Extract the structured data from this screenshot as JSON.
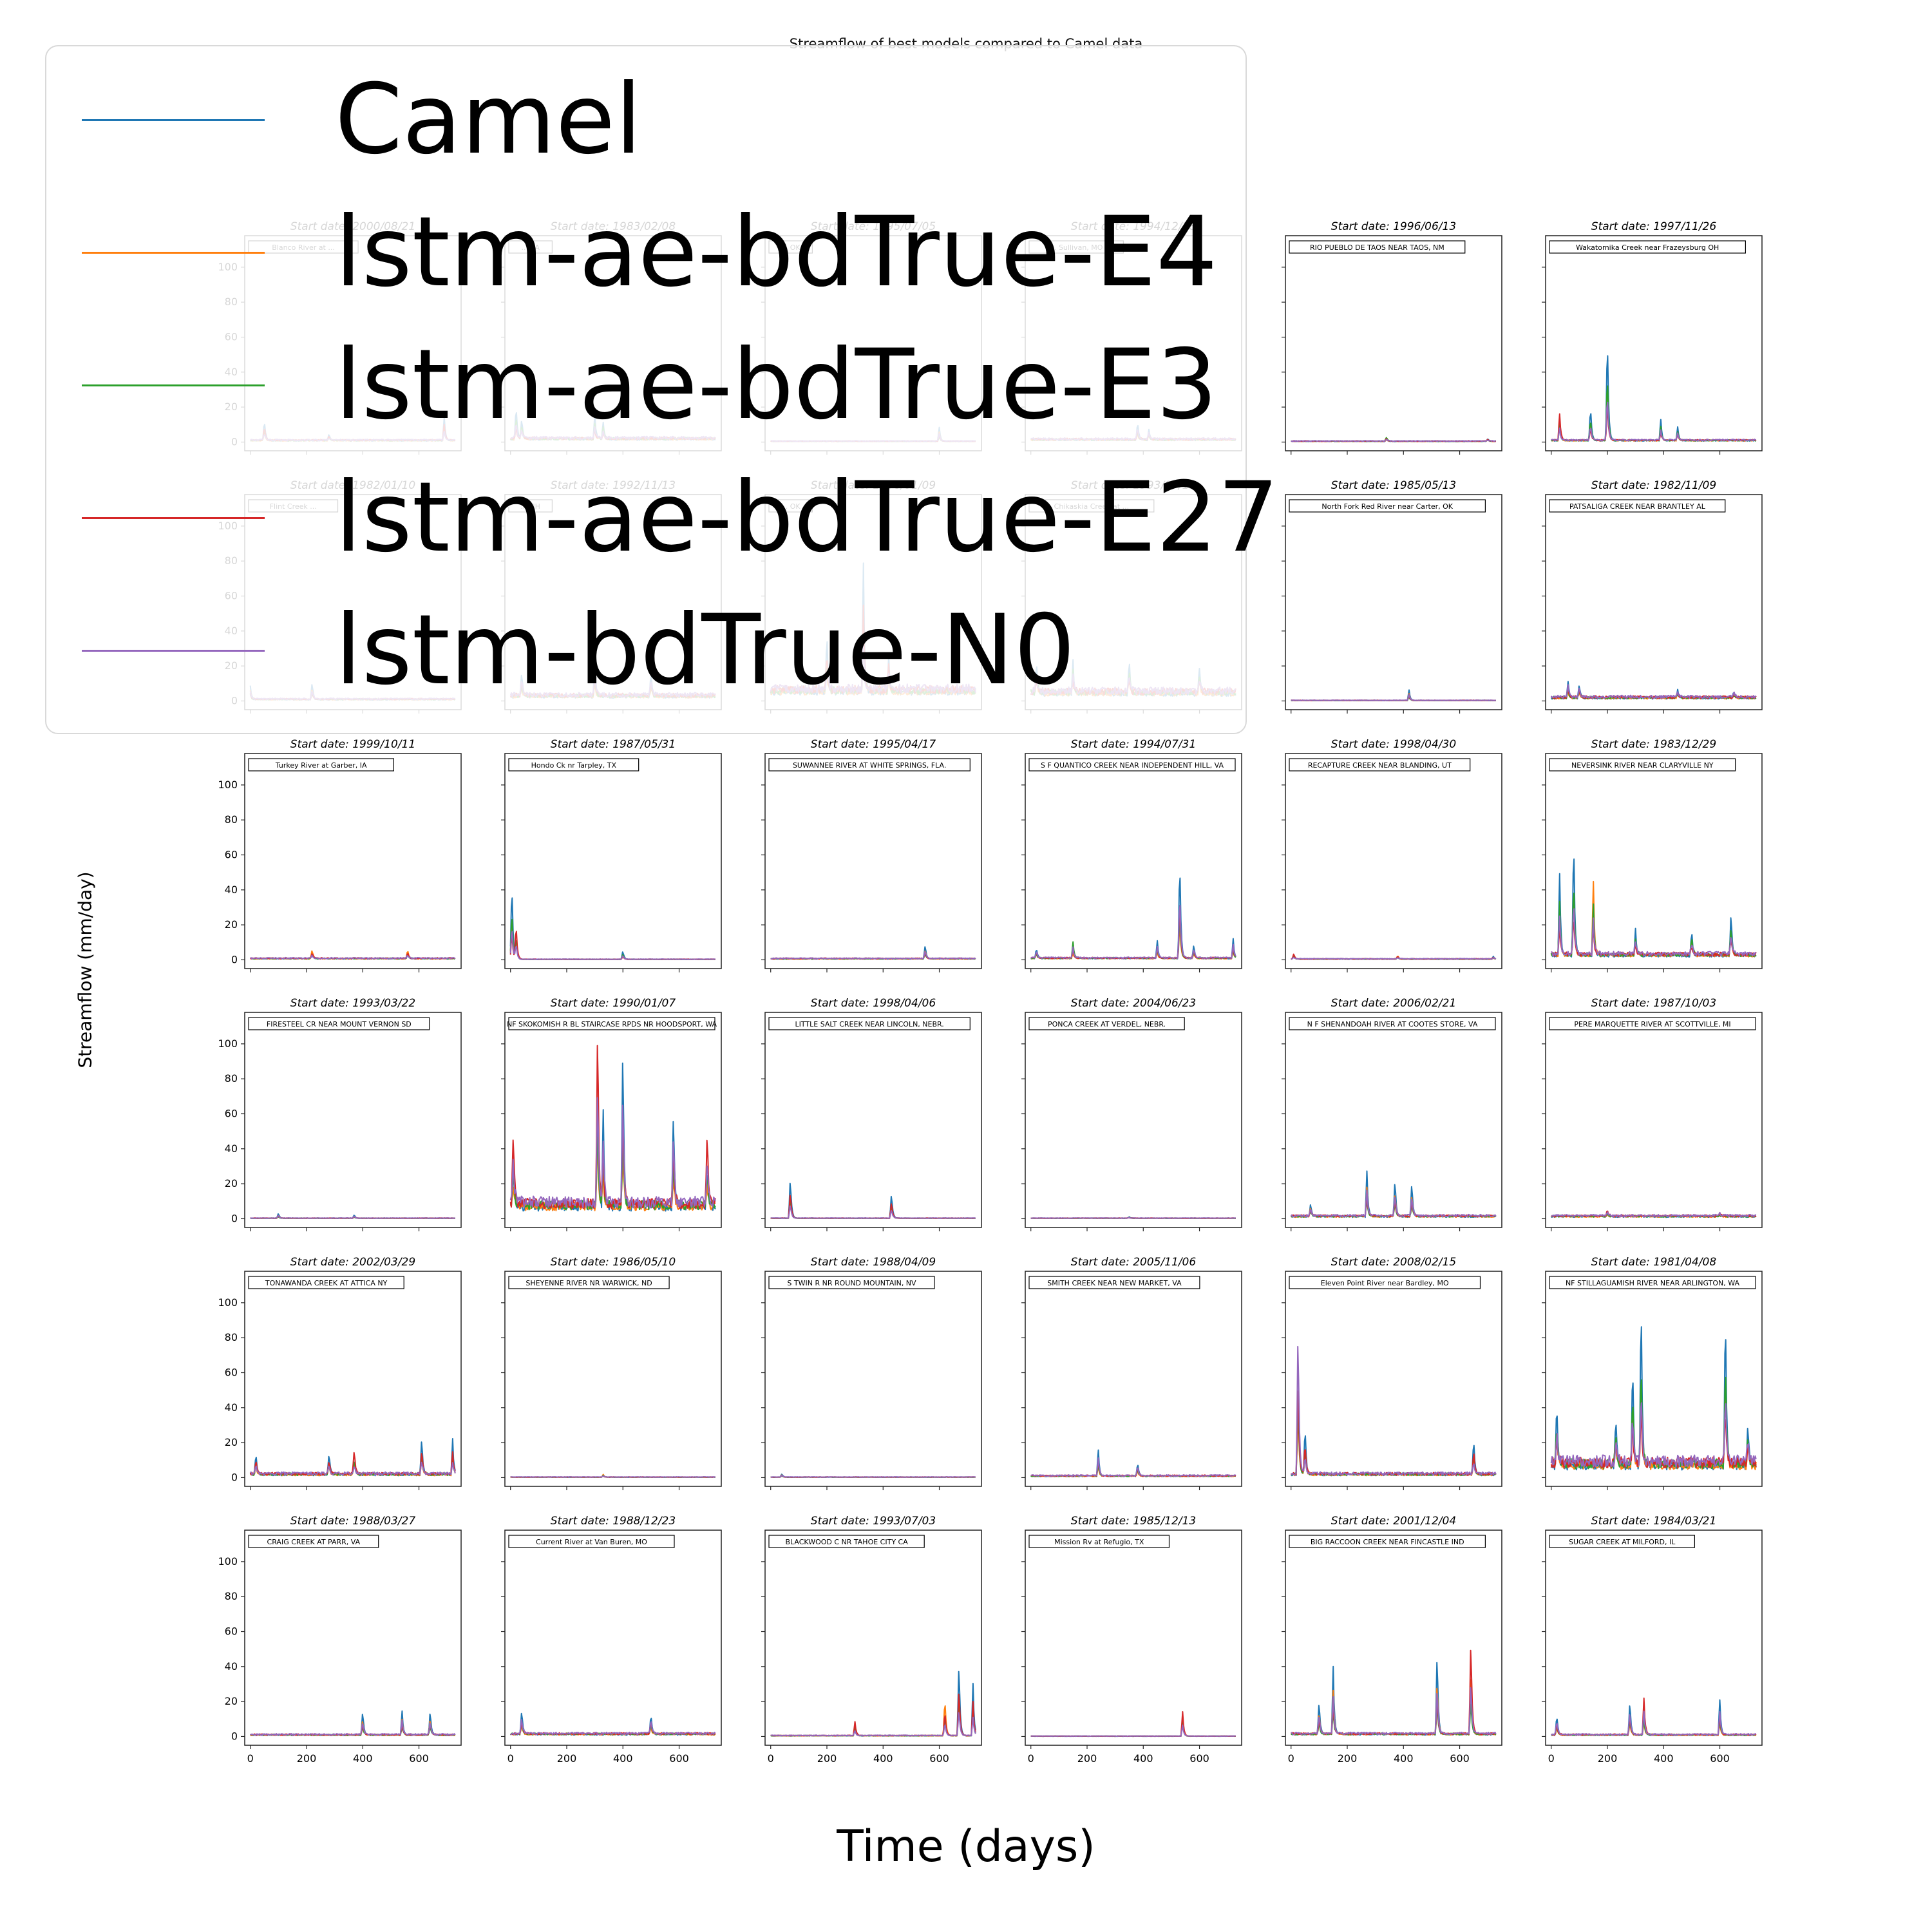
{
  "figure": {
    "title": "Streamflow of best models compared to Camel data",
    "xlabel": "Time (days)",
    "ylabel": "Streamflow (mm/day)",
    "subplot_title_prefix": "Start date: "
  },
  "legend": {
    "entries": [
      {
        "label": "Camel",
        "color": "#1f77b4"
      },
      {
        "label": "lstm-ae-bdTrue-E4",
        "color": "#ff7f0e"
      },
      {
        "label": "lstm-ae-bdTrue-E3",
        "color": "#2ca02c"
      },
      {
        "label": "lstm-ae-bdTrue-E27",
        "color": "#d62728"
      },
      {
        "label": "lstm-bdTrue-N0",
        "color": "#9467bd"
      }
    ]
  },
  "chart_data": {
    "type": "line",
    "layout": "grid of small multiples, 6 rows x 6 columns, shared axes",
    "xlim": [
      -20,
      750
    ],
    "ylim": [
      -5,
      118
    ],
    "xticks": [
      0,
      200,
      400,
      600
    ],
    "yticks": [
      0,
      20,
      40,
      60,
      80,
      100
    ],
    "grid": false,
    "legend_position": "upper-left",
    "series_names": [
      "Camel",
      "lstm-ae-bdTrue-E4",
      "lstm-ae-bdTrue-E3",
      "lstm-ae-bdTrue-E27",
      "lstm-bdTrue-N0"
    ],
    "panels": [
      {
        "start_date": "2000/08/21",
        "station": "Blanco River at ...",
        "base": 1.0,
        "peaks": [
          [
            50,
            12,
            "c"
          ],
          [
            280,
            4,
            "c"
          ],
          [
            690,
            14,
            "c"
          ]
        ]
      },
      {
        "start_date": "1983/02/08",
        "station": "... VA",
        "base": 2.0,
        "peaks": [
          [
            20,
            20,
            "c"
          ],
          [
            40,
            12,
            "c"
          ],
          [
            300,
            14,
            "c"
          ],
          [
            330,
            10,
            "c"
          ]
        ]
      },
      {
        "start_date": "1995/07/05",
        "station": "... OK",
        "base": 0.5,
        "peaks": [
          [
            600,
            8,
            "c"
          ]
        ]
      },
      {
        "start_date": "1994/12/18",
        "station": "... Sullivan, MO",
        "base": 1.5,
        "peaks": [
          [
            380,
            10,
            "c"
          ],
          [
            420,
            6,
            "c"
          ]
        ]
      },
      {
        "start_date": "1996/06/13",
        "station": "RIO PUEBLO DE TAOS NEAR TAOS, NM",
        "base": 0.5,
        "peaks": [
          [
            340,
            2.5,
            "g"
          ],
          [
            700,
            1.5,
            "c"
          ]
        ]
      },
      {
        "start_date": "1997/11/26",
        "station": "Wakatomika Creek near Frazeysburg OH",
        "base": 1.0,
        "peaks": [
          [
            30,
            15,
            "r"
          ],
          [
            140,
            20,
            "c"
          ],
          [
            200,
            62,
            "c"
          ],
          [
            390,
            12,
            "c"
          ],
          [
            450,
            8,
            "c"
          ]
        ]
      },
      {
        "start_date": "1982/01/10",
        "station": "Flint Creek ...",
        "base": 1.0,
        "peaks": [
          [
            0,
            8,
            "c"
          ],
          [
            220,
            10,
            "c"
          ]
        ]
      },
      {
        "start_date": "1992/11/13",
        "station": "... NH",
        "base": 3.0,
        "peaks": [
          [
            40,
            15,
            "c"
          ],
          [
            300,
            20,
            "c"
          ],
          [
            500,
            15,
            "c"
          ]
        ]
      },
      {
        "start_date": "1996/01/09",
        "station": "... OK",
        "base": 6.0,
        "peaks": [
          [
            200,
            35,
            "c"
          ],
          [
            330,
            75,
            "c"
          ],
          [
            420,
            20,
            "c"
          ]
        ]
      },
      {
        "start_date": "1993/07/15",
        "station": "Chikaskia Creek at ...",
        "base": 5.0,
        "peaks": [
          [
            20,
            20,
            "c"
          ],
          [
            150,
            18,
            "c"
          ],
          [
            350,
            20,
            "c"
          ],
          [
            600,
            15,
            "c"
          ]
        ]
      },
      {
        "start_date": "1985/05/13",
        "station": "North Fork Red River near Carter, OK",
        "base": 0.3,
        "peaks": [
          [
            420,
            6,
            "c"
          ]
        ]
      },
      {
        "start_date": "1982/11/09",
        "station": "PATSALIGA CREEK NEAR BRANTLEY AL",
        "base": 2.0,
        "peaks": [
          [
            60,
            10,
            "c"
          ],
          [
            100,
            8,
            "c"
          ],
          [
            450,
            5,
            "c"
          ],
          [
            650,
            4,
            "c"
          ]
        ]
      },
      {
        "start_date": "1999/10/11",
        "station": "Turkey River at Garber, IA",
        "base": 0.8,
        "peaks": [
          [
            220,
            5,
            "o"
          ],
          [
            560,
            5,
            "o"
          ]
        ]
      },
      {
        "start_date": "1987/05/31",
        "station": "Hondo Ck nr Tarpley, TX",
        "base": 0.3,
        "peaks": [
          [
            5,
            45,
            "c"
          ],
          [
            20,
            20,
            "r"
          ],
          [
            400,
            5,
            "c"
          ]
        ]
      },
      {
        "start_date": "1995/04/17",
        "station": "SUWANNEE RIVER AT WHITE SPRINGS, FLA.",
        "base": 0.7,
        "peaks": [
          [
            550,
            8,
            "c"
          ]
        ]
      },
      {
        "start_date": "1994/07/31",
        "station": "S F QUANTICO CREEK NEAR INDEPENDENT HILL, VA",
        "base": 1.0,
        "peaks": [
          [
            20,
            6,
            "c"
          ],
          [
            150,
            9,
            "g"
          ],
          [
            450,
            10,
            "c"
          ],
          [
            530,
            59,
            "c"
          ],
          [
            580,
            8,
            "c"
          ],
          [
            720,
            11,
            "c"
          ]
        ]
      },
      {
        "start_date": "1998/04/30",
        "station": "RECAPTURE CREEK NEAR BLANDING, UT",
        "base": 0.5,
        "peaks": [
          [
            10,
            3,
            "r"
          ],
          [
            380,
            2,
            "o"
          ],
          [
            720,
            1.5,
            "c"
          ]
        ]
      },
      {
        "start_date": "1983/12/29",
        "station": "NEVERSINK RIVER NEAR CLARYVILLE NY",
        "base": 3.0,
        "peaks": [
          [
            30,
            47,
            "c"
          ],
          [
            80,
            70,
            "c"
          ],
          [
            150,
            43,
            "o"
          ],
          [
            300,
            15,
            "c"
          ],
          [
            500,
            15,
            "c"
          ],
          [
            640,
            25,
            "c"
          ]
        ]
      },
      {
        "start_date": "1993/03/22",
        "station": "FIRESTEEL CR NEAR MOUNT VERNON SD",
        "base": 0.3,
        "peaks": [
          [
            100,
            3,
            "c"
          ],
          [
            370,
            2,
            "c"
          ]
        ]
      },
      {
        "start_date": "1990/01/07",
        "station": "NF SKOKOMISH R BL STAIRCASE RPDS NR HOODSPORT, WA",
        "base": 8.0,
        "peaks": [
          [
            10,
            44,
            "r"
          ],
          [
            310,
            110,
            "r"
          ],
          [
            330,
            57,
            "c"
          ],
          [
            400,
            98,
            "c"
          ],
          [
            580,
            59,
            "c"
          ],
          [
            700,
            42,
            "r"
          ]
        ]
      },
      {
        "start_date": "1998/04/06",
        "station": "LITTLE SALT CREEK NEAR LINCOLN, NEBR.",
        "base": 0.3,
        "peaks": [
          [
            70,
            24,
            "c"
          ],
          [
            430,
            15,
            "c"
          ]
        ]
      },
      {
        "start_date": "2004/06/23",
        "station": "PONCA CREEK AT VERDEL, NEBR.",
        "base": 0.3,
        "peaks": [
          [
            350,
            1,
            "c"
          ]
        ]
      },
      {
        "start_date": "2006/02/21",
        "station": "N F SHENANDOAH RIVER AT COOTES STORE, VA",
        "base": 1.5,
        "peaks": [
          [
            70,
            8,
            "c"
          ],
          [
            270,
            26,
            "c"
          ],
          [
            370,
            22,
            "c"
          ],
          [
            430,
            20,
            "c"
          ]
        ]
      },
      {
        "start_date": "1987/10/03",
        "station": "PERE MARQUETTE RIVER AT SCOTTVILLE, MI",
        "base": 1.5,
        "peaks": [
          [
            200,
            3,
            "r"
          ],
          [
            600,
            2,
            "r"
          ]
        ]
      },
      {
        "start_date": "2002/03/29",
        "station": "TONAWANDA CREEK AT ATTICA NY",
        "base": 2.0,
        "peaks": [
          [
            20,
            13,
            "c"
          ],
          [
            280,
            13,
            "c"
          ],
          [
            370,
            15,
            "r"
          ],
          [
            610,
            22,
            "c"
          ],
          [
            720,
            20,
            "c"
          ]
        ]
      },
      {
        "start_date": "1986/05/10",
        "station": "SHEYENNE RIVER NR WARWICK, ND",
        "base": 0.3,
        "peaks": [
          [
            330,
            1.5,
            "o"
          ]
        ]
      },
      {
        "start_date": "1988/04/09",
        "station": "S TWIN R NR ROUND MOUNTAIN, NV",
        "base": 0.3,
        "peaks": [
          [
            40,
            2,
            "c"
          ]
        ]
      },
      {
        "start_date": "2005/11/06",
        "station": "SMITH CREEK NEAR NEW MARKET, VA",
        "base": 1.0,
        "peaks": [
          [
            240,
            15,
            "c"
          ],
          [
            380,
            8,
            "c"
          ]
        ]
      },
      {
        "start_date": "2008/02/15",
        "station": "Eleven Point River near Bardley, MO",
        "base": 2.0,
        "peaks": [
          [
            25,
            88,
            "p"
          ],
          [
            50,
            28,
            "c"
          ],
          [
            650,
            21,
            "c"
          ]
        ]
      },
      {
        "start_date": "1981/04/08",
        "station": "NF STILLAGUAMISH RIVER NEAR ARLINGTON, WA",
        "base": 8.0,
        "peaks": [
          [
            20,
            38,
            "c"
          ],
          [
            230,
            30,
            "c"
          ],
          [
            290,
            62,
            "c"
          ],
          [
            320,
            100,
            "c"
          ],
          [
            620,
            95,
            "c"
          ],
          [
            700,
            26,
            "c"
          ]
        ]
      },
      {
        "start_date": "1988/03/27",
        "station": "CRAIG CREEK AT PARR, VA",
        "base": 1.0,
        "peaks": [
          [
            400,
            14,
            "c"
          ],
          [
            540,
            14,
            "c"
          ],
          [
            640,
            14,
            "c"
          ]
        ]
      },
      {
        "start_date": "1988/12/23",
        "station": "Current River at Van Buren, MO",
        "base": 1.5,
        "peaks": [
          [
            40,
            14,
            "c"
          ],
          [
            500,
            12,
            "c"
          ]
        ]
      },
      {
        "start_date": "1993/07/03",
        "station": "BLACKWOOD C NR TAHOE CITY CA",
        "base": 0.5,
        "peaks": [
          [
            300,
            8,
            "r"
          ],
          [
            620,
            22,
            "o"
          ],
          [
            670,
            44,
            "c"
          ],
          [
            720,
            30,
            "c"
          ]
        ]
      },
      {
        "start_date": "1985/12/13",
        "station": "Mission Rv at Refugio, TX",
        "base": 0.2,
        "peaks": [
          [
            540,
            14,
            "r"
          ]
        ]
      },
      {
        "start_date": "2001/12/04",
        "station": "BIG RACCOON CREEK NEAR FINCASTLE IND",
        "base": 1.5,
        "peaks": [
          [
            150,
            39,
            "c"
          ],
          [
            100,
            20,
            "c"
          ],
          [
            520,
            49,
            "c"
          ],
          [
            640,
            57,
            "r"
          ]
        ]
      },
      {
        "start_date": "1984/03/21",
        "station": "SUGAR CREEK AT MILFORD, IL",
        "base": 1.0,
        "peaks": [
          [
            20,
            12,
            "c"
          ],
          [
            280,
            20,
            "c"
          ],
          [
            330,
            21,
            "r"
          ],
          [
            600,
            20,
            "c"
          ]
        ]
      }
    ]
  }
}
